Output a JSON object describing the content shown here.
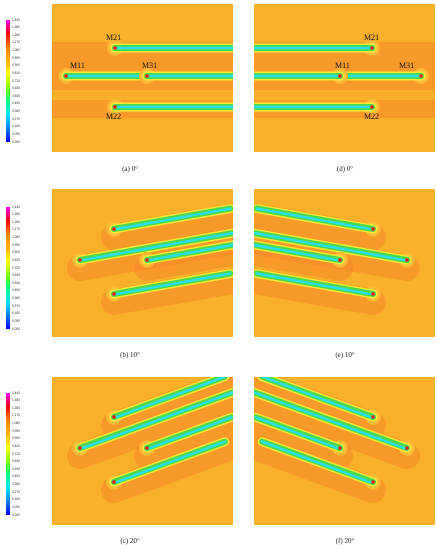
{
  "colorbar": {
    "ticks": [
      "1.440",
      "1.350",
      "1.260",
      "1.170",
      "1.080",
      "0.990",
      "0.900",
      "0.810",
      "0.720",
      "0.630",
      "0.540",
      "0.450",
      "0.360",
      "0.270",
      "0.180",
      "0.090",
      "0.000"
    ],
    "gradient": [
      "#ff00ff",
      "#ff0000",
      "#ff8000",
      "#ffb000",
      "#ffff00",
      "#80ff00",
      "#00ff80",
      "#00e0ff",
      "#0080ff",
      "#0000ff"
    ]
  },
  "colors": {
    "background": "#fbb02b",
    "wake": "#f7872a",
    "hull": "#fde06a",
    "blade_core": "#28e0f2",
    "blade_mid": "#4cd84e",
    "blade_edge": "#f4ec35",
    "tip": "#e81c23"
  },
  "captions": {
    "a": "(a) 0°",
    "b": "(b) 10°",
    "c": "(c) 20°",
    "d": "(d) 0°",
    "e": "(e) 10°",
    "f": "(f) 20°"
  },
  "labels": {
    "m21_left": "M21",
    "m11_left": "M11",
    "m31_left": "M31",
    "m22_left": "M22",
    "m21_right": "M21",
    "m11_right": "M11",
    "m31_right": "M31",
    "m22_right": "M22"
  }
}
